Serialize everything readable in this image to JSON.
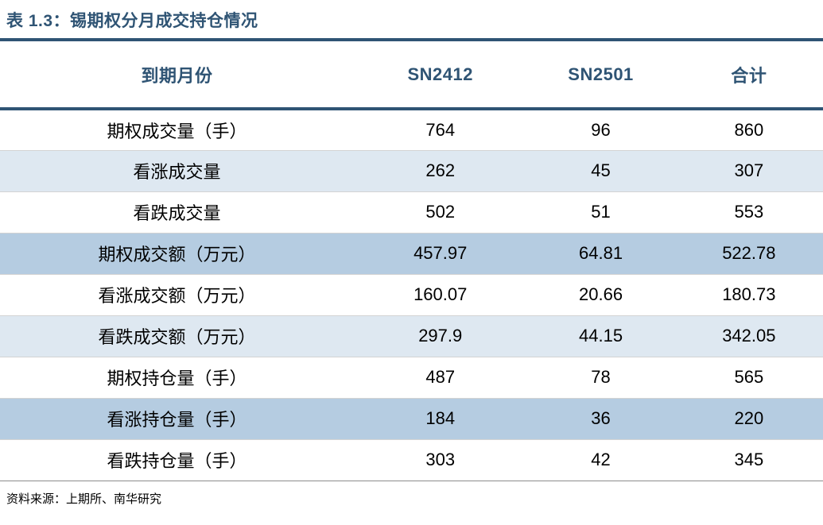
{
  "title": "表 1.3：锡期权分月成交持仓情况",
  "source": "资料来源：上期所、南华研究",
  "colors": {
    "accent_navy": "#2F5474",
    "row_light_blue": "#DEE8F1",
    "row_medium_blue": "#B5CCE1",
    "row_divider_gray": "#D3D3D3",
    "bottom_rule_gray": "#8C8C8C",
    "body_text": "#000000"
  },
  "table": {
    "headers": [
      "到期月份",
      "SN2412",
      "SN2501",
      "合计"
    ],
    "rows": [
      {
        "cells": [
          "期权成交量（手）",
          "764",
          "96",
          "860"
        ],
        "shade": "white"
      },
      {
        "cells": [
          "看涨成交量",
          "262",
          "45",
          "307"
        ],
        "shade": "light-blue"
      },
      {
        "cells": [
          "看跌成交量",
          "502",
          "51",
          "553"
        ],
        "shade": "white"
      },
      {
        "cells": [
          "期权成交额（万元）",
          "457.97",
          "64.81",
          "522.78"
        ],
        "shade": "medium-blue"
      },
      {
        "cells": [
          "看涨成交额（万元）",
          "160.07",
          "20.66",
          "180.73"
        ],
        "shade": "white"
      },
      {
        "cells": [
          "看跌成交额（万元）",
          "297.9",
          "44.15",
          "342.05"
        ],
        "shade": "light-blue"
      },
      {
        "cells": [
          "期权持仓量（手）",
          "487",
          "78",
          "565"
        ],
        "shade": "white"
      },
      {
        "cells": [
          "看涨持仓量（手）",
          "184",
          "36",
          "220"
        ],
        "shade": "medium-blue"
      },
      {
        "cells": [
          "看跌持仓量（手）",
          "303",
          "42",
          "345"
        ],
        "shade": "white"
      }
    ]
  }
}
